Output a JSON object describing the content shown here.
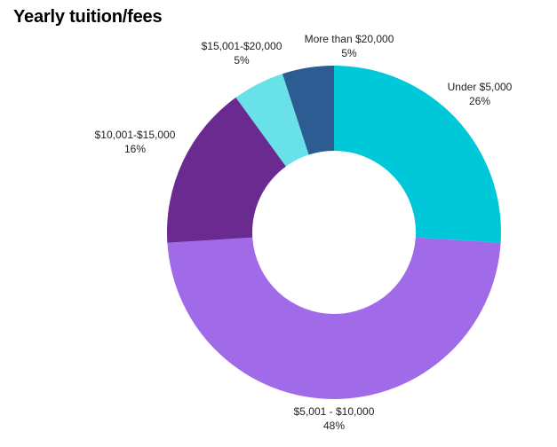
{
  "chart_data": {
    "type": "pie",
    "title": "Yearly tuition/fees",
    "slices": [
      {
        "label": "Under $5,000",
        "percent_label": "26%",
        "value": 26,
        "color": "#00C8D8"
      },
      {
        "label": "$5,001 - $10,000",
        "percent_label": "48%",
        "value": 48,
        "color": "#A06AE8"
      },
      {
        "label": "$10,001-$15,000",
        "percent_label": "16%",
        "value": 16,
        "color": "#6B2A8F"
      },
      {
        "label": "$15,001-$20,000",
        "percent_label": "5%",
        "value": 5,
        "color": "#68E2E8"
      },
      {
        "label": "More than $20,000",
        "percent_label": "5%",
        "value": 5,
        "color": "#2D5C92"
      }
    ],
    "legend": "none",
    "grid": false
  }
}
